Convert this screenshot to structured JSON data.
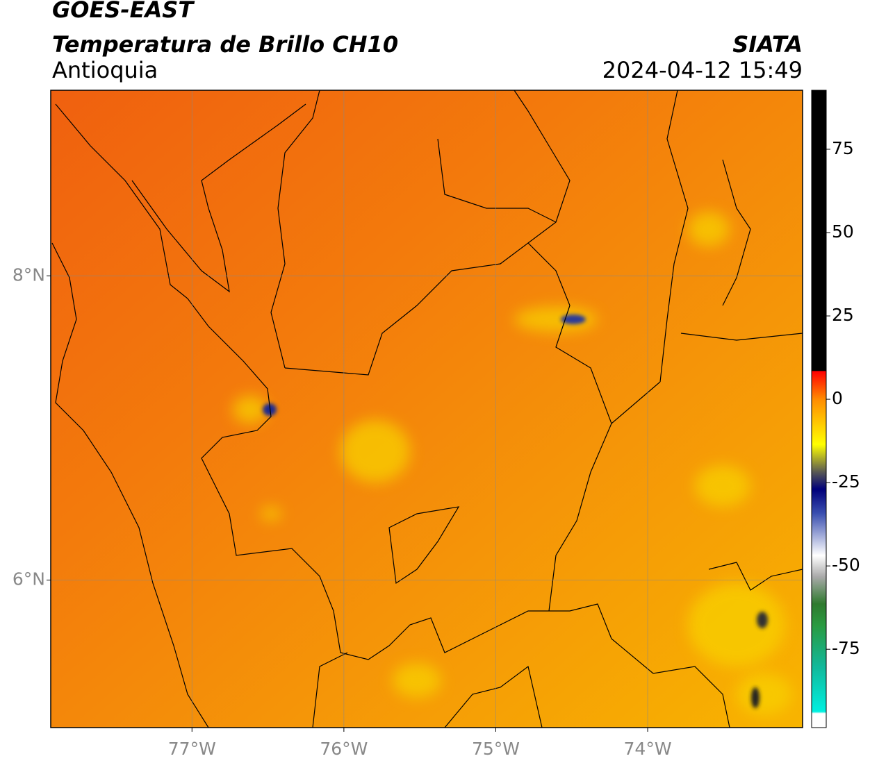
{
  "chart_data": {
    "type": "map",
    "title": "GOES-EAST",
    "subtitle": "Temperatura de Brillo CH10",
    "region": "Antioquia",
    "source": "SIATA",
    "timestamp": "2024-04-12 15:49",
    "xlim": [
      -77.93,
      -72.98
    ],
    "ylim": [
      5.03,
      9.22
    ],
    "xticks": [
      {
        "value": -77,
        "label": "77°W"
      },
      {
        "value": -76,
        "label": "76°W"
      },
      {
        "value": -75,
        "label": "75°W"
      },
      {
        "value": -74,
        "label": "74°W"
      }
    ],
    "yticks": [
      {
        "value": 8,
        "label": "8°N"
      },
      {
        "value": 6,
        "label": "6°N"
      }
    ],
    "grid": true,
    "colorbar": {
      "lim": [
        -98.5,
        92.7
      ],
      "ticks": [
        75,
        50,
        25,
        0,
        -25,
        -50,
        -75
      ]
    }
  }
}
